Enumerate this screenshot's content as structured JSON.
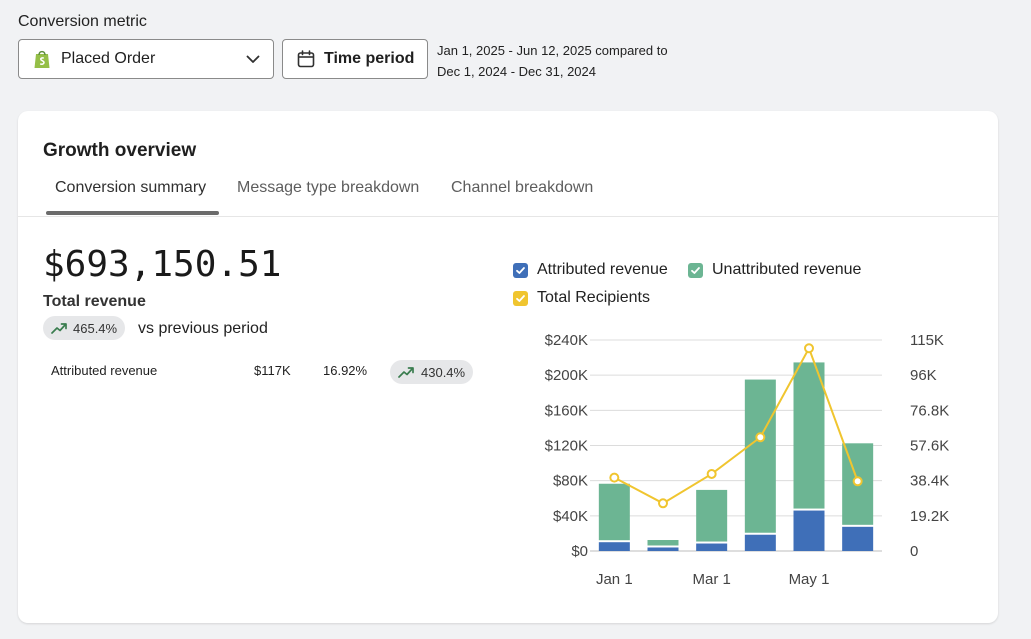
{
  "filters": {
    "metric_label": "Conversion metric",
    "metric_value": "Placed Order",
    "time_button": "Time period",
    "range_line1": "Jan 1, 2025 - Jun 12, 2025 compared to",
    "range_line2": "Dec 1, 2024 - Dec 31, 2024"
  },
  "card": {
    "title": "Growth overview",
    "tabs": [
      {
        "label": "Conversion summary",
        "active": true
      },
      {
        "label": "Message type breakdown",
        "active": false
      },
      {
        "label": "Channel breakdown",
        "active": false
      }
    ]
  },
  "summary": {
    "total": "$693,150.51",
    "total_label": "Total revenue",
    "growth": "465.4%",
    "vs_text": "vs previous period",
    "attributed": {
      "name": "Attributed revenue",
      "value": "$117K",
      "percent": "16.92%",
      "growth": "430.4%"
    }
  },
  "colors": {
    "attributed": "#3f6fb8",
    "unattributed": "#6cb593",
    "recipients": "#f0c52f",
    "growth_arrow": "#3a7d4f"
  },
  "chart_data": {
    "type": "bar",
    "stacked": true,
    "legend": [
      {
        "name": "Attributed revenue",
        "color": "#3f6fb8"
      },
      {
        "name": "Unattributed revenue",
        "color": "#6cb593"
      },
      {
        "name": "Total Recipients",
        "color": "#f0c52f"
      }
    ],
    "x_tick_labels": [
      "Jan 1",
      "Mar 1",
      "May 1"
    ],
    "x_tick_indices": [
      0,
      2,
      4
    ],
    "series": [
      {
        "name": "Attributed revenue",
        "axis": "left",
        "values": [
          10000,
          4000,
          8500,
          18500,
          46000,
          27500
        ]
      },
      {
        "name": "Unattributed revenue",
        "axis": "left",
        "values": [
          66500,
          8500,
          61000,
          176500,
          168500,
          95000
        ]
      },
      {
        "name": "Total Recipients",
        "axis": "right",
        "kind": "line",
        "values": [
          40000,
          26000,
          42000,
          62000,
          110500,
          38000
        ]
      }
    ],
    "y_left": {
      "ticks": [
        "$0",
        "$40K",
        "$80K",
        "$120K",
        "$160K",
        "$200K",
        "$240K"
      ],
      "ylim": [
        0,
        240000
      ]
    },
    "y_right": {
      "ticks": [
        "0",
        "19.2K",
        "38.4K",
        "57.6K",
        "76.8K",
        "96K",
        "115K"
      ],
      "ylim": [
        0,
        115000
      ]
    },
    "grid": true
  }
}
